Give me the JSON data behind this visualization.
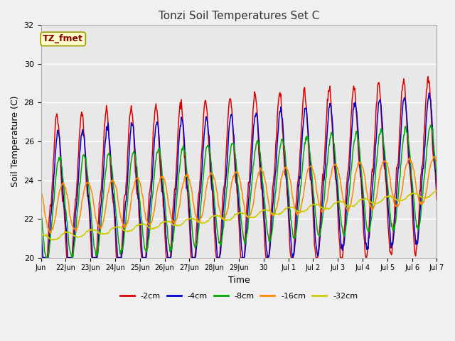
{
  "title": "Tonzi Soil Temperatures Set C",
  "xlabel": "Time",
  "ylabel": "Soil Temperature (C)",
  "ylim": [
    20,
    32
  ],
  "background_color": "#e8e8e8",
  "plot_bg_color": "#e8e8e8",
  "fig_bg_color": "#f0f0f0",
  "annotation_text": "TZ_fmet",
  "annotation_color": "#8b0000",
  "annotation_bg": "#ffffcc",
  "annotation_border": "#999900",
  "series_colors": [
    "#dd0000",
    "#0000cc",
    "#00aa00",
    "#ff8800",
    "#cccc00"
  ],
  "series_labels": [
    "-2cm",
    "-4cm",
    "-8cm",
    "-16cm",
    "-32cm"
  ],
  "tick_labels": [
    "Jun",
    "22Jun",
    "23Jun",
    "24Jun",
    "25Jun",
    "26Jun",
    "27Jun",
    "28Jun",
    "29Jun",
    "30",
    "Jul 1",
    "Jul 2",
    "Jul 3",
    "Jul 4",
    "Jul 5",
    "Jul 6",
    "Jul 7"
  ],
  "grid_color": "#ffffff",
  "linewidth": 1.1,
  "yticks": [
    20,
    22,
    24,
    26,
    28,
    30,
    32
  ]
}
